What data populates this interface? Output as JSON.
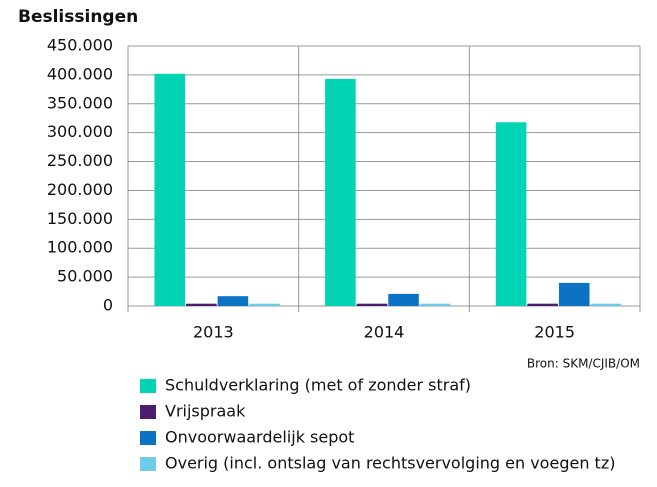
{
  "chart_data": {
    "type": "bar",
    "title": "Beslissingen",
    "source": "Bron: SKM/CJIB/OM",
    "categories": [
      "2013",
      "2014",
      "2015"
    ],
    "series": [
      {
        "name": "Schuldverklaring (met of zonder straf)",
        "color": "#00d4b4",
        "values": [
          402000,
          393000,
          318000
        ]
      },
      {
        "name": "Vrijspraak",
        "color": "#4b1f6e",
        "values": [
          4000,
          4000,
          4000
        ]
      },
      {
        "name": "Onvoorwaardelijk sepot",
        "color": "#0b72c4",
        "values": [
          17000,
          21000,
          40000
        ]
      },
      {
        "name": "Overig (incl. ontslag van rechtsvervolging en voegen tz)",
        "color": "#6fcbe8",
        "values": [
          4000,
          4000,
          4000
        ]
      }
    ],
    "ylim": [
      0,
      450000
    ],
    "yticks": [
      0,
      {
        "value": 50000,
        "label": "50.000"
      },
      {
        "value": 100000,
        "label": "100.000"
      },
      {
        "value": 150000,
        "label": "150.000"
      },
      {
        "value": 200000,
        "label": "200.000"
      },
      {
        "value": 250000,
        "label": "250.000"
      },
      {
        "value": 300000,
        "label": "300.000"
      },
      {
        "value": 350000,
        "label": "350.000"
      },
      {
        "value": 400000,
        "label": "400.000"
      },
      {
        "value": 450000,
        "label": "450.000"
      }
    ],
    "grid": true
  }
}
